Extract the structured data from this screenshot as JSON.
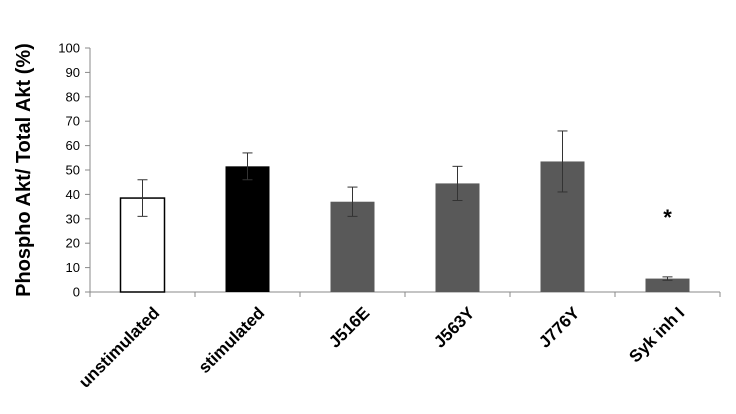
{
  "chart_data": {
    "type": "bar",
    "title": "",
    "xlabel": "",
    "ylabel": "Phospho Akt/ Total Akt (%)",
    "ylim": [
      0,
      100
    ],
    "yticks": [
      0,
      10,
      20,
      30,
      40,
      50,
      60,
      70,
      80,
      90,
      100
    ],
    "grid": false,
    "legend": "none",
    "categories": [
      "unstimulated",
      "stimulated",
      "J516E",
      "J563Y",
      "J776Y",
      "Syk inh I"
    ],
    "values": [
      38.5,
      51.5,
      37,
      44.5,
      53.5,
      5.5
    ],
    "errors": [
      7.5,
      5.5,
      6,
      7,
      12.5,
      0.7
    ],
    "fill_colors": [
      "#ffffff",
      "#000000",
      "#595959",
      "#595959",
      "#595959",
      "#595959"
    ],
    "annotations": [
      {
        "category": "Syk inh I",
        "text": "*"
      }
    ]
  }
}
